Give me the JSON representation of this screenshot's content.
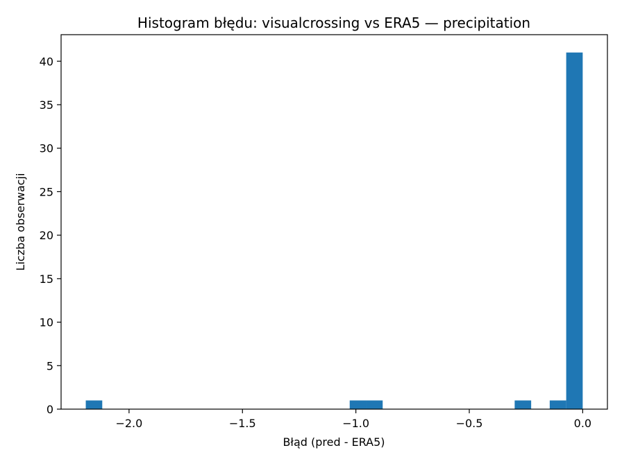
{
  "chart_data": {
    "type": "bar",
    "title": "Histogram błędu: visualcrossing vs ERA5 — precipitation",
    "xlabel": "Błąd (pred - ERA5)",
    "ylabel": "Liczba obserwacji",
    "bin_width": 0.0727,
    "bins": [
      {
        "start": -2.1908,
        "end": -2.1181,
        "count": 1
      },
      {
        "start": -1.0272,
        "end": -0.9545,
        "count": 1
      },
      {
        "start": -0.9545,
        "end": -0.8818,
        "count": 1
      },
      {
        "start": -0.2999,
        "end": -0.2272,
        "count": 1
      },
      {
        "start": -0.1454,
        "end": -0.0727,
        "count": 1
      },
      {
        "start": -0.0727,
        "end": 0.0,
        "count": 41
      }
    ],
    "xlim": [
      -2.2996,
      0.109
    ],
    "ylim": [
      0,
      43.05
    ],
    "xticks": [
      -2.0,
      -1.5,
      -1.0,
      -0.5,
      0.0
    ],
    "xtick_labels": [
      "−2.0",
      "−1.5",
      "−1.0",
      "−0.5",
      "0.0"
    ],
    "yticks": [
      0,
      5,
      10,
      15,
      20,
      25,
      30,
      35,
      40
    ],
    "ytick_labels": [
      "0",
      "5",
      "10",
      "15",
      "20",
      "25",
      "30",
      "35",
      "40"
    ],
    "bar_color": "#1f77b4",
    "grid": false,
    "legend": "none"
  }
}
